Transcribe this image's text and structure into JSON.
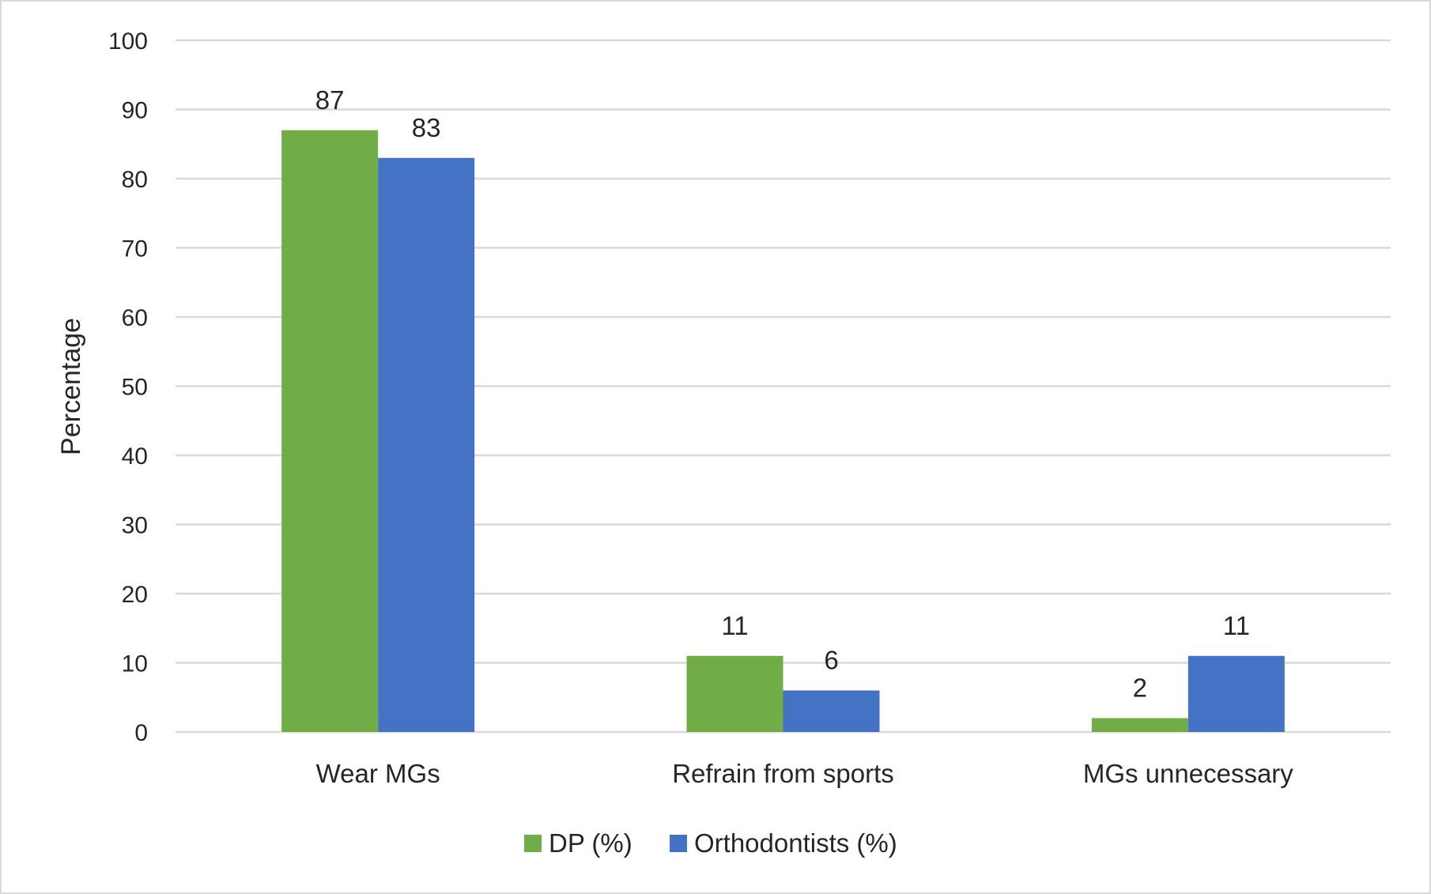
{
  "chart_data": {
    "type": "bar",
    "title": "",
    "xlabel": "",
    "ylabel": "Percentage",
    "ylim": [
      0,
      100
    ],
    "yticks": [
      0,
      10,
      20,
      30,
      40,
      50,
      60,
      70,
      80,
      90,
      100
    ],
    "grid": true,
    "legend_position": "bottom",
    "categories": [
      "Wear MGs",
      "Refrain from sports",
      "MGs unnecessary"
    ],
    "series": [
      {
        "name": "DP (%)",
        "color": "#70ad47",
        "values": [
          87,
          11,
          2
        ]
      },
      {
        "name": "Orthodontists (%)",
        "color": "#4472c4",
        "values": [
          83,
          6,
          11
        ]
      }
    ]
  }
}
